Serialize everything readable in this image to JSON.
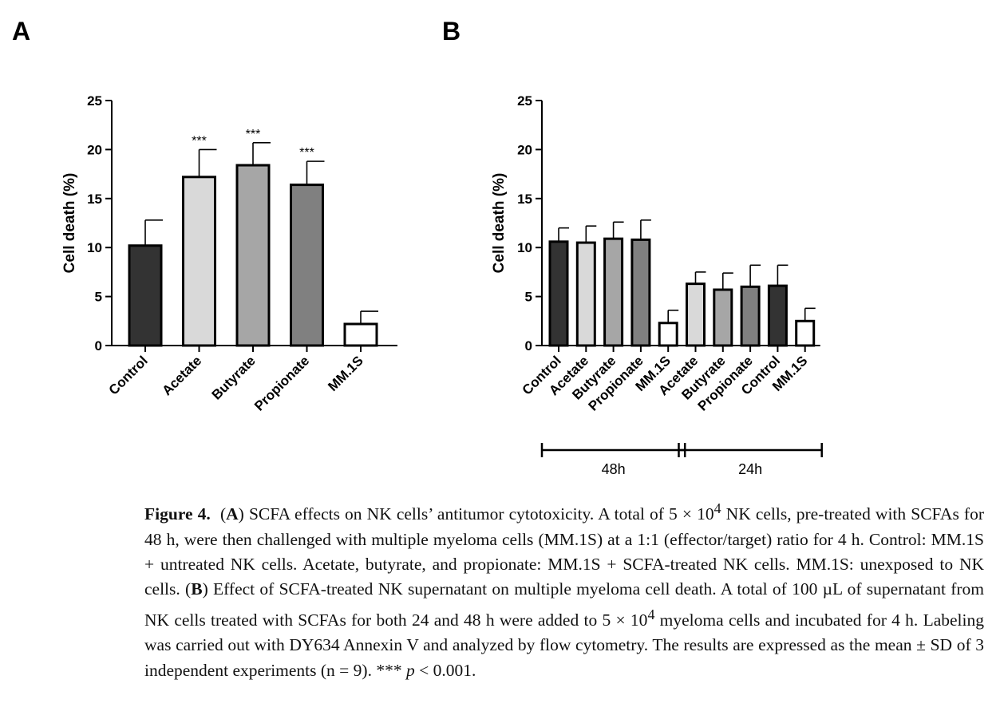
{
  "chart_data": [
    {
      "type": "bar",
      "panel_label": "A",
      "ylabel": "Cell death (%)",
      "ylim": [
        0,
        25
      ],
      "yticks": [
        0,
        5,
        10,
        15,
        20,
        25
      ],
      "categories": [
        "Control",
        "Acetate",
        "Butyrate",
        "Propionate",
        "MM.1S"
      ],
      "values": [
        10.2,
        17.2,
        18.4,
        16.4,
        2.2
      ],
      "errors": [
        2.6,
        2.8,
        2.3,
        2.4,
        1.3
      ],
      "annotations": [
        "",
        "***",
        "***",
        "***",
        ""
      ],
      "colors": [
        "#333333",
        "#d9d9d9",
        "#a6a6a6",
        "#808080",
        "#ffffff"
      ],
      "grid": false
    },
    {
      "type": "bar",
      "panel_label": "B",
      "ylabel": "Cell death (%)",
      "ylim": [
        0,
        25
      ],
      "yticks": [
        0,
        5,
        10,
        15,
        20,
        25
      ],
      "categories": [
        "Control",
        "Acetate",
        "Butyrate",
        "Propionate",
        "MM.1S",
        "Acetate",
        "Butyrate",
        "Propionate",
        "Control",
        "MM.1S"
      ],
      "values": [
        10.6,
        10.5,
        10.9,
        10.8,
        2.3,
        6.3,
        5.7,
        6.0,
        6.1,
        2.5
      ],
      "errors": [
        1.4,
        1.7,
        1.7,
        2.0,
        1.3,
        1.2,
        1.7,
        2.2,
        2.1,
        1.3
      ],
      "colors": [
        "#333333",
        "#d9d9d9",
        "#a6a6a6",
        "#808080",
        "#ffffff",
        "#d9d9d9",
        "#a6a6a6",
        "#808080",
        "#333333",
        "#ffffff"
      ],
      "groups": [
        {
          "label": "48h",
          "from": 0,
          "to": 4
        },
        {
          "label": "24h",
          "from": 5,
          "to": 9
        }
      ],
      "grid": false
    }
  ],
  "caption": {
    "title": "Figure 4.",
    "html": "<b>Figure 4.</b>&nbsp; (<b>A</b>) SCFA effects on NK cells’ antitumor cytotoxicity. A total of 5 × 10<sup>4</sup> NK cells, pre-treated with SCFAs for 48 h, were then challenged with multiple myeloma cells (MM.1S) at a 1:1 (effector/target) ratio for 4 h. Control: MM.1S + untreated NK cells. Acetate, butyrate, and propionate: MM.1S + SCFA-treated NK cells. MM.1S: unexposed to NK cells. (<b>B</b>) Effect of SCFA-treated NK supernatant on multiple myeloma cell death. A total of 100 µL of supernatant from NK cells treated with SCFAs for both 24 and 48 h were added to 5 × 10<sup>4</sup> myeloma cells and incubated for 4 h. Labeling was carried out with DY634 Annexin V and analyzed by flow cytometry. The results are expressed as the mean ± SD of 3 independent experiments (n = 9). *** <i>p</i> &lt; 0.001."
  }
}
